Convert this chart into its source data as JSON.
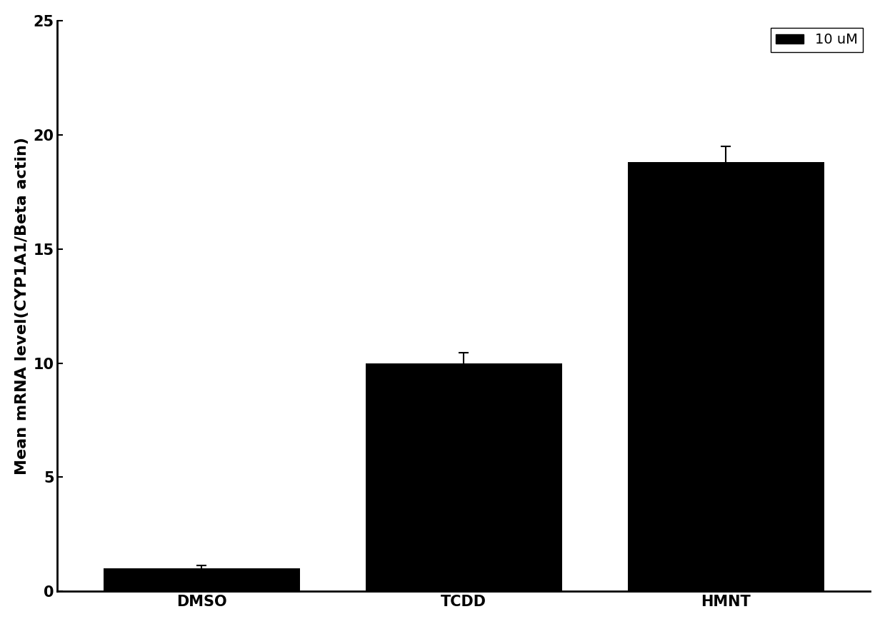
{
  "categories": [
    "DMSO",
    "TCDD",
    "HMNT"
  ],
  "values": [
    1.0,
    10.0,
    18.8
  ],
  "errors": [
    0.15,
    0.45,
    0.7
  ],
  "bar_color": "#000000",
  "bar_width": 0.75,
  "ylabel": "Mean mRNA level(CYP1A1/Beta actin)",
  "ylim": [
    0,
    25
  ],
  "yticks": [
    0,
    5,
    10,
    15,
    20,
    25
  ],
  "legend_label": "10 uM",
  "ylabel_fontsize": 16,
  "tick_fontsize": 15,
  "legend_fontsize": 14,
  "background_color": "#ffffff",
  "error_color": "#000000",
  "capsize": 5,
  "xlim_left": -0.55,
  "xlim_right": 2.55
}
